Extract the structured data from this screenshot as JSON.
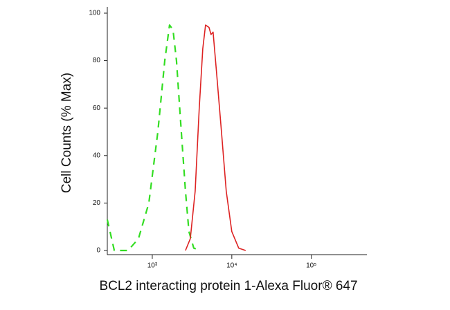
{
  "chart_data": {
    "type": "line",
    "x_label": "BCL2 interacting protein 1-Alexa Fluor® 647",
    "y_label": "Cell Counts (% Max)",
    "x_scale": "log",
    "xlim": [
      272,
      500000
    ],
    "xticks": [
      {
        "value": 1000,
        "label": "10³"
      },
      {
        "value": 10000,
        "label": "10⁴"
      },
      {
        "value": 100000,
        "label": "10⁵"
      }
    ],
    "ylim": [
      0,
      100
    ],
    "yticks": [
      0,
      20,
      40,
      60,
      80,
      100
    ],
    "series": [
      {
        "color": "#33dd22",
        "dash": "dashed",
        "x": [
          272,
          333,
          496,
          670,
          905,
          1174,
          1435,
          1650,
          1823,
          2015,
          2318,
          2614,
          2890,
          3327,
          4065
        ],
        "values": [
          13,
          0,
          0,
          5,
          20,
          50,
          80,
          95,
          93,
          80,
          50,
          25,
          8,
          1,
          0
        ]
      },
      {
        "color": "#dd2222",
        "dash": "solid",
        "x": [
          2614,
          3006,
          3459,
          3899,
          4313,
          4677,
          5165,
          5483,
          5821,
          6436,
          7413,
          8511,
          10000,
          12220,
          14930
        ],
        "values": [
          0,
          5,
          25,
          60,
          85,
          95,
          94,
          91,
          92,
          75,
          50,
          25,
          8,
          1,
          0
        ]
      }
    ]
  }
}
